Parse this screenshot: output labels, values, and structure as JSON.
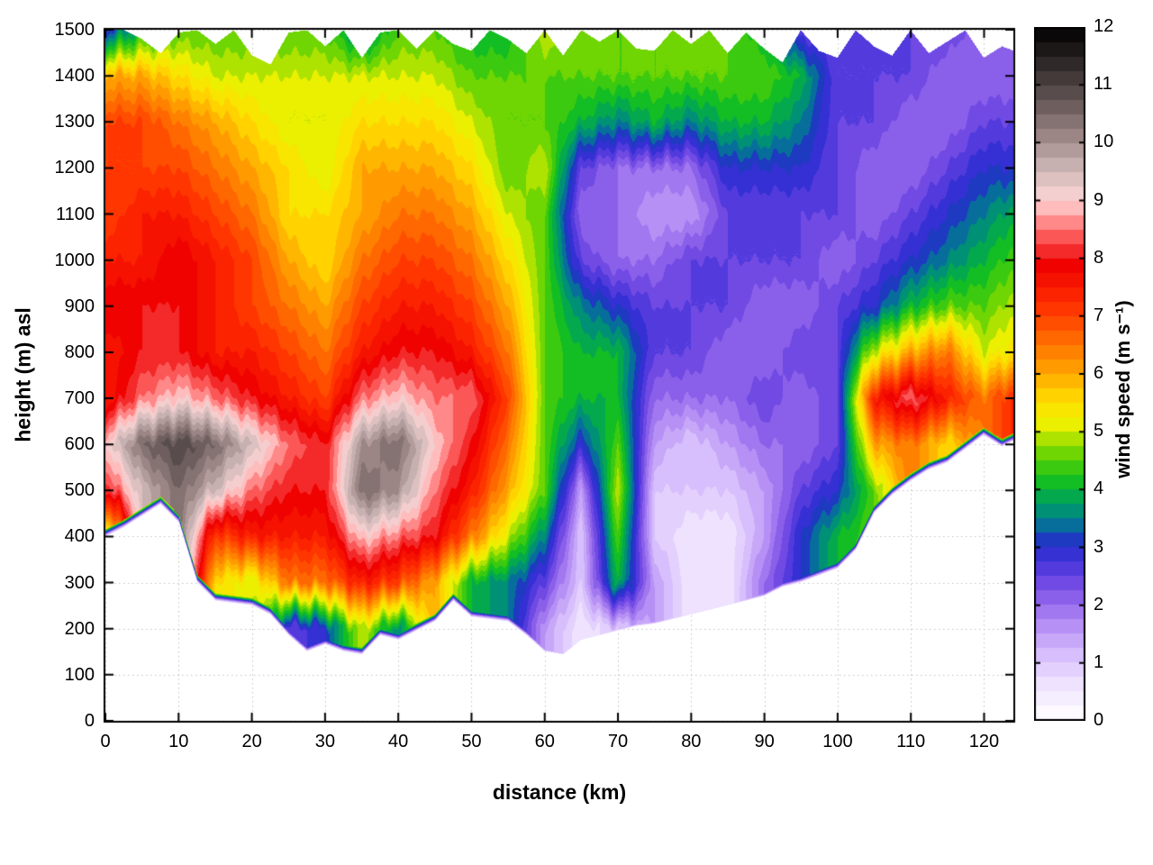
{
  "figure": {
    "background": "#ffffff"
  },
  "chart_data": {
    "type": "heatmap",
    "title": "",
    "xlabel": "distance (km)",
    "ylabel": "height (m) asl",
    "colorbar_label": "wind speed (m s⁻¹)",
    "x_range": [
      0,
      124
    ],
    "y_range": [
      0,
      1500
    ],
    "colorbar_range": [
      0,
      12
    ],
    "x_ticks": [
      0,
      10,
      20,
      30,
      40,
      50,
      60,
      70,
      80,
      90,
      100,
      110,
      120
    ],
    "y_ticks": [
      0,
      100,
      200,
      300,
      400,
      500,
      600,
      700,
      800,
      900,
      1000,
      1100,
      1200,
      1300,
      1400,
      1500
    ],
    "colorbar_ticks": [
      0,
      1,
      2,
      3,
      4,
      5,
      6,
      7,
      8,
      9,
      10,
      11,
      12
    ],
    "grid": true,
    "grid_color": "#c0c0c0",
    "frame_color": "#000000",
    "band_step": 0.25,
    "x": [
      0,
      5,
      10,
      15,
      20,
      25,
      30,
      35,
      40,
      45,
      50,
      55,
      60,
      65,
      70,
      75,
      80,
      85,
      90,
      95,
      100,
      105,
      110,
      115,
      120,
      125
    ],
    "y": [
      0,
      100,
      200,
      300,
      400,
      500,
      600,
      700,
      800,
      900,
      1000,
      1100,
      1200,
      1300,
      1400,
      1500
    ],
    "values": [
      [
        null,
        null,
        null,
        null,
        null,
        null,
        null,
        null,
        null,
        null,
        null,
        null,
        null,
        null,
        null,
        null,
        null,
        null,
        null,
        null,
        null,
        null,
        null,
        null,
        null,
        null
      ],
      [
        null,
        null,
        null,
        null,
        null,
        null,
        null,
        null,
        null,
        null,
        null,
        null,
        null,
        null,
        null,
        null,
        null,
        null,
        null,
        null,
        null,
        null,
        null,
        null,
        null,
        null
      ],
      [
        null,
        null,
        null,
        null,
        null,
        2.5,
        3,
        5,
        3.5,
        null,
        null,
        null,
        1.5,
        0.5,
        1,
        null,
        null,
        null,
        null,
        null,
        null,
        null,
        null,
        null,
        null,
        null
      ],
      [
        null,
        null,
        null,
        5.5,
        5,
        6.5,
        6.5,
        7.5,
        7,
        6,
        4,
        3.5,
        2.5,
        1,
        4,
        1.5,
        0.5,
        0.5,
        2,
        3,
        null,
        null,
        null,
        null,
        null,
        null
      ],
      [
        4.5,
        null,
        null,
        7,
        7.5,
        7.5,
        7.5,
        9,
        8.5,
        8,
        6.5,
        5,
        3.5,
        1,
        4.5,
        1,
        0.5,
        0.5,
        1.5,
        3,
        4,
        null,
        null,
        null,
        null,
        null
      ],
      [
        8,
        9.5,
        10.5,
        9.5,
        8.5,
        8,
        8,
        10.5,
        10,
        8.5,
        7.5,
        6,
        4.5,
        1.5,
        5,
        1,
        1,
        1,
        1.5,
        2.5,
        3,
        4.5,
        null,
        null,
        null,
        null
      ],
      [
        9,
        10.5,
        11,
        10.5,
        9.5,
        8.5,
        8,
        10,
        10.5,
        9,
        8,
        6.5,
        4.5,
        3,
        4.5,
        1.5,
        1,
        1.5,
        2,
        2,
        2.5,
        6,
        6.5,
        5.5,
        null,
        null
      ],
      [
        7.5,
        8.5,
        9,
        8.5,
        8,
        7.5,
        7,
        8.5,
        9,
        8.5,
        8.5,
        7,
        4.5,
        4,
        4,
        2,
        2,
        2,
        2.5,
        2,
        2.5,
        7.5,
        8.5,
        7.5,
        6.5,
        7.5
      ],
      [
        7.5,
        8,
        8,
        7.5,
        7.5,
        7,
        6.5,
        7.5,
        8,
        8,
        7.5,
        6.5,
        4.5,
        4,
        4,
        2.5,
        2.5,
        2,
        2,
        2.5,
        2.5,
        5,
        6,
        6.5,
        5,
        5.5
      ],
      [
        8,
        8,
        8,
        7.5,
        7,
        6.5,
        6,
        7,
        7.5,
        7.5,
        7,
        6,
        4.5,
        3.5,
        3,
        2.5,
        2.5,
        2.5,
        2,
        2,
        2.5,
        3,
        4,
        4.5,
        4.5,
        5
      ],
      [
        7.5,
        7.5,
        8,
        7.5,
        7,
        6,
        5.5,
        6.5,
        7,
        7,
        6.5,
        5.5,
        4.5,
        2.5,
        2,
        2,
        2.5,
        2.5,
        2.5,
        2.5,
        2,
        2.5,
        3,
        3.5,
        4,
        4.5
      ],
      [
        7,
        7.5,
        7.5,
        7,
        6.5,
        5.5,
        5.5,
        6,
        6.5,
        6.5,
        6,
        5,
        4.5,
        2,
        2,
        1.5,
        1.5,
        2.5,
        2.5,
        2.5,
        2.5,
        2,
        2.5,
        3,
        3.5,
        4
      ],
      [
        7,
        7,
        7,
        6.5,
        6,
        5.5,
        5,
        6,
        6,
        6,
        5.5,
        4.5,
        5,
        2.5,
        2,
        2,
        2,
        3,
        3,
        3,
        2.5,
        2,
        2,
        2.5,
        3,
        3
      ],
      [
        7,
        7,
        6.5,
        6,
        5.5,
        5,
        5,
        5.5,
        5.5,
        5.5,
        5,
        4.5,
        4.5,
        4,
        3.5,
        4,
        3.5,
        4,
        4,
        3.5,
        2.5,
        2.5,
        2,
        2,
        2.5,
        2.5
      ],
      [
        6,
        6,
        5.5,
        5,
        5,
        5,
        5,
        5,
        5,
        5,
        4.5,
        4.5,
        4.5,
        4.5,
        4.5,
        4.5,
        4.5,
        4.5,
        4.5,
        4,
        2.5,
        2.5,
        2.5,
        2,
        2,
        2
      ],
      [
        3,
        4,
        4.5,
        4.5,
        4.5,
        4.5,
        4.5,
        3.5,
        4.5,
        4.5,
        4,
        4,
        5,
        4.5,
        4.5,
        4.5,
        4.5,
        4.5,
        4,
        2.5,
        2.5,
        2.5,
        2.5,
        2.5,
        2,
        2.5
      ]
    ],
    "terrain_x": [
      0,
      2.5,
      5,
      7.5,
      10,
      12.5,
      15,
      17.5,
      20,
      22.5,
      25,
      27.5,
      30,
      32.5,
      35,
      37.5,
      40,
      42.5,
      45,
      47.5,
      50,
      52.5,
      55,
      57.5,
      60,
      62.5,
      65,
      67.5,
      70,
      72.5,
      75,
      77.5,
      80,
      82.5,
      85,
      87.5,
      90,
      92.5,
      95,
      97.5,
      100,
      102.5,
      105,
      107.5,
      110,
      112.5,
      115,
      117.5,
      120,
      122.5,
      125
    ],
    "terrain_height": [
      400,
      420,
      445,
      470,
      430,
      300,
      260,
      255,
      250,
      230,
      185,
      150,
      165,
      150,
      143,
      185,
      175,
      195,
      215,
      260,
      225,
      220,
      215,
      185,
      150,
      143,
      175,
      185,
      195,
      205,
      210,
      220,
      230,
      240,
      250,
      260,
      270,
      290,
      300,
      315,
      330,
      370,
      450,
      490,
      520,
      545,
      560,
      590,
      620,
      595,
      615
    ],
    "top_height": [
      1500,
      1500,
      1480,
      1450,
      1495,
      1500,
      1470,
      1500,
      1445,
      1425,
      1495,
      1500,
      1465,
      1500,
      1440,
      1495,
      1500,
      1460,
      1500,
      1470,
      1455,
      1500,
      1480,
      1450,
      1500,
      1445,
      1500,
      1475,
      1500,
      1460,
      1455,
      1500,
      1470,
      1500,
      1450,
      1495,
      1460,
      1430,
      1500,
      1455,
      1440,
      1500,
      1465,
      1445,
      1500,
      1450,
      1475,
      1500,
      1440,
      1465,
      1450
    ],
    "color_stops": [
      [
        0.0,
        "#ffffff"
      ],
      [
        0.6,
        "#efe4ff"
      ],
      [
        1.2,
        "#d4b8fb"
      ],
      [
        1.8,
        "#a97ff2"
      ],
      [
        2.3,
        "#7a4fe6"
      ],
      [
        2.8,
        "#3c2fd8"
      ],
      [
        3.1,
        "#1f35c4"
      ],
      [
        3.45,
        "#007d91"
      ],
      [
        3.8,
        "#00a35a"
      ],
      [
        4.2,
        "#17c317"
      ],
      [
        4.7,
        "#7fd800"
      ],
      [
        5.1,
        "#eaf000"
      ],
      [
        5.5,
        "#ffe000"
      ],
      [
        6.0,
        "#ffa800"
      ],
      [
        6.6,
        "#ff6a00"
      ],
      [
        7.2,
        "#ff2e00"
      ],
      [
        7.9,
        "#ee0000"
      ],
      [
        8.5,
        "#ff6e6e"
      ],
      [
        9.0,
        "#ffd6d6"
      ],
      [
        9.6,
        "#c9b2b2"
      ],
      [
        10.2,
        "#947f7f"
      ],
      [
        10.8,
        "#5f5151"
      ],
      [
        11.4,
        "#2e2727"
      ],
      [
        12.0,
        "#000000"
      ]
    ]
  }
}
